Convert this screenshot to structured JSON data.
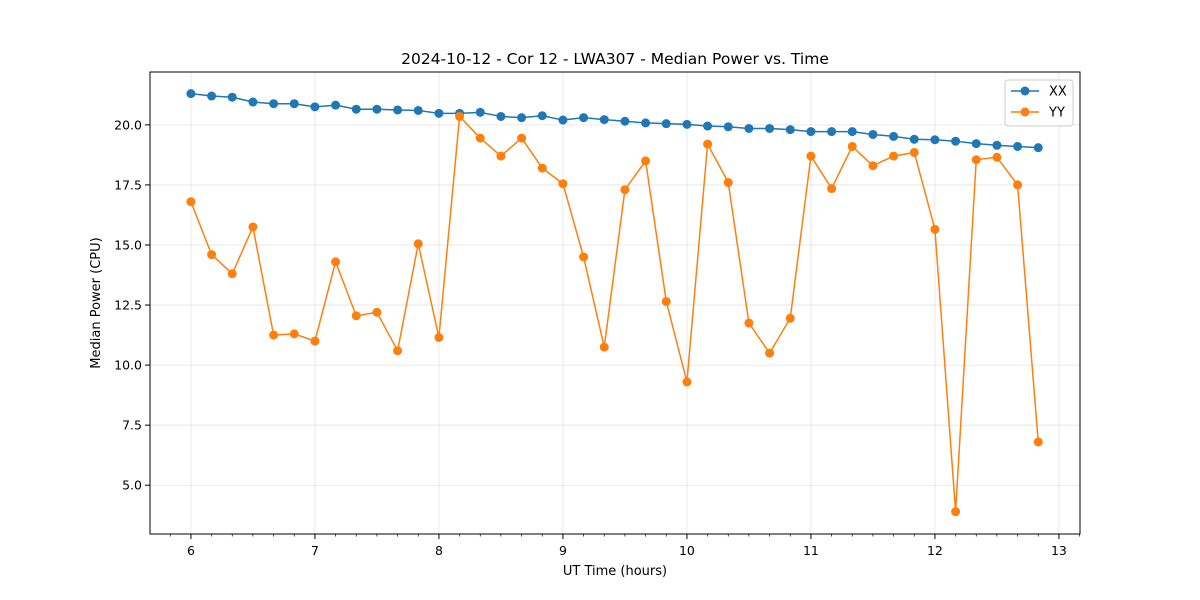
{
  "chart_data": {
    "type": "line",
    "title": "2024-10-12 - Cor 12 - LWA307 - Median Power vs. Time",
    "xlabel": "UT Time (hours)",
    "ylabel": "Median Power (CPU)",
    "xlim": [
      5.67,
      13.17
    ],
    "ylim": [
      2.97,
      22.2
    ],
    "xticks": [
      6,
      7,
      8,
      9,
      10,
      11,
      12,
      13
    ],
    "xtick_labels": [
      "6",
      "7",
      "8",
      "9",
      "10",
      "11",
      "12",
      "13"
    ],
    "yticks": [
      5.0,
      7.5,
      10.0,
      12.5,
      15.0,
      17.5,
      20.0
    ],
    "ytick_labels": [
      "5.0",
      "7.5",
      "10.0",
      "12.5",
      "15.0",
      "17.5",
      "20.0"
    ],
    "grid": true,
    "legend_position": "top-right",
    "x": [
      6.0,
      6.1667,
      6.3333,
      6.5,
      6.6667,
      6.8333,
      7.0,
      7.1667,
      7.3333,
      7.5,
      7.6667,
      7.8333,
      8.0,
      8.1667,
      8.3333,
      8.5,
      8.6667,
      8.8333,
      9.0,
      9.1667,
      9.3333,
      9.5,
      9.6667,
      9.8333,
      10.0,
      10.1667,
      10.3333,
      10.5,
      10.6667,
      10.8333,
      11.0,
      11.1667,
      11.3333,
      11.5,
      11.6667,
      11.8333,
      12.0,
      12.1667,
      12.3333,
      12.5,
      12.6667,
      12.8333
    ],
    "series": [
      {
        "name": "XX",
        "color": "#1f77b4",
        "values": [
          21.3,
          21.2,
          21.15,
          20.95,
          20.88,
          20.88,
          20.75,
          20.82,
          20.65,
          20.65,
          20.62,
          20.6,
          20.48,
          20.48,
          20.52,
          20.35,
          20.3,
          20.38,
          20.2,
          20.3,
          20.22,
          20.15,
          20.08,
          20.05,
          20.02,
          19.95,
          19.92,
          19.85,
          19.85,
          19.8,
          19.72,
          19.72,
          19.72,
          19.6,
          19.52,
          19.4,
          19.38,
          19.32,
          19.22,
          19.15,
          19.1,
          19.05
        ]
      },
      {
        "name": "YY",
        "color": "#ff7f0e",
        "values": [
          16.8,
          14.6,
          13.8,
          15.75,
          11.25,
          11.3,
          11.0,
          14.3,
          12.05,
          12.2,
          10.6,
          15.05,
          11.15,
          20.35,
          19.45,
          18.7,
          19.45,
          18.2,
          17.55,
          14.5,
          10.75,
          17.3,
          18.5,
          12.65,
          9.3,
          19.2,
          17.6,
          11.75,
          10.5,
          11.95,
          18.7,
          17.35,
          19.1,
          18.3,
          18.7,
          18.85,
          15.65,
          3.9,
          18.55,
          18.65,
          17.5,
          6.8
        ]
      }
    ]
  }
}
